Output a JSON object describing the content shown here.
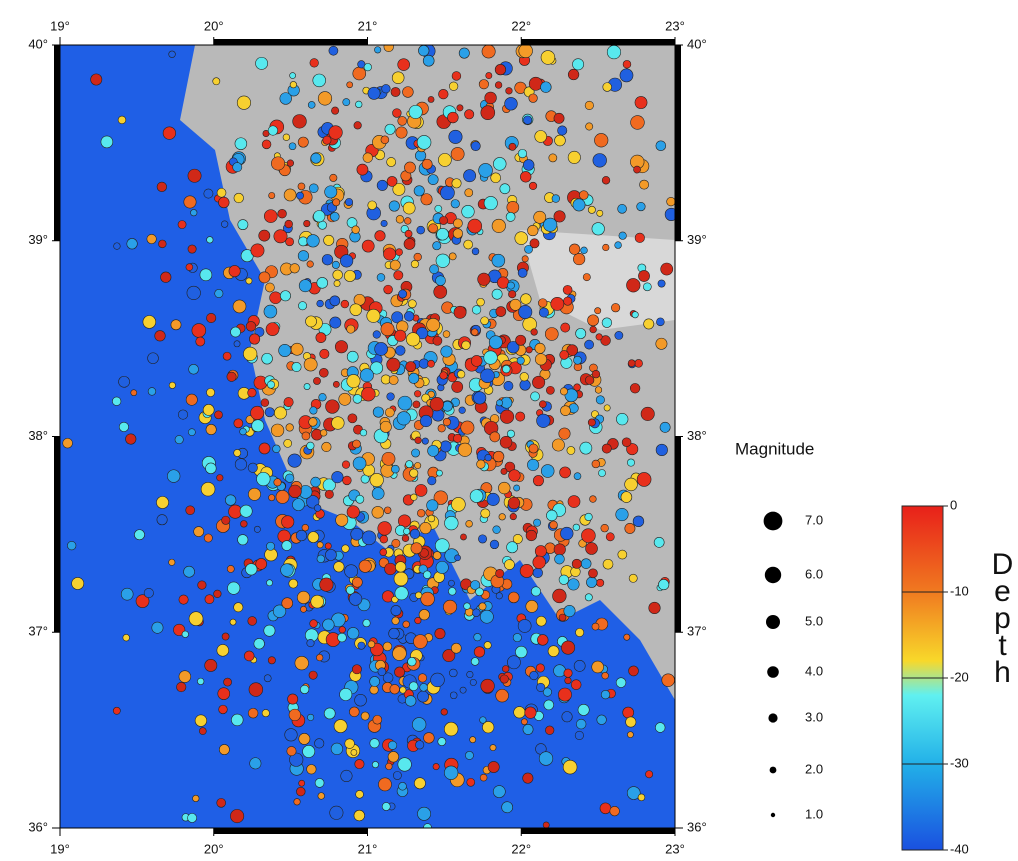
{
  "map": {
    "lon_ticks": [
      {
        "value": 19,
        "label": "19°"
      },
      {
        "value": 20,
        "label": "20°"
      },
      {
        "value": 21,
        "label": "21°"
      },
      {
        "value": 22,
        "label": "22°"
      },
      {
        "value": 23,
        "label": "23°"
      }
    ],
    "lat_ticks": [
      {
        "value": 36,
        "label": "36°"
      },
      {
        "value": 37,
        "label": "37°"
      },
      {
        "value": 38,
        "label": "38°"
      },
      {
        "value": 39,
        "label": "39°"
      },
      {
        "value": 40,
        "label": "40°"
      }
    ],
    "magnitude_legend": {
      "title": "Magnitude",
      "sizes": [
        {
          "value": 7,
          "label": "7.0"
        },
        {
          "value": 6,
          "label": "6.0"
        },
        {
          "value": 5,
          "label": "5.0"
        },
        {
          "value": 4,
          "label": "4.0"
        },
        {
          "value": 3,
          "label": "3.0"
        },
        {
          "value": 2,
          "label": "2.0"
        },
        {
          "value": 1,
          "label": "1.0"
        }
      ]
    },
    "depth_colorbar": {
      "title": "Depth",
      "ticks": [
        0,
        -10,
        -20,
        -30,
        -40
      ]
    }
  }
}
